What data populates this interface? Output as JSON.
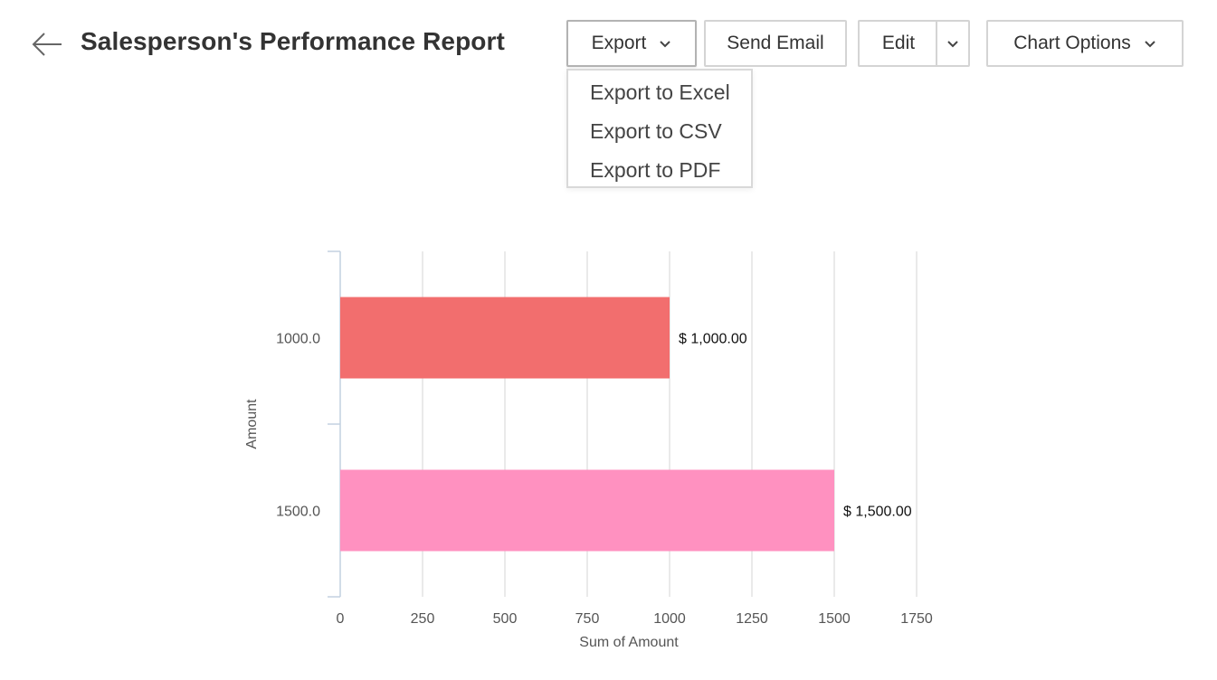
{
  "header": {
    "title": "Salesperson's Performance Report"
  },
  "toolbar": {
    "export_label": "Export",
    "send_email_label": "Send Email",
    "edit_label": "Edit",
    "chart_options_label": "Chart Options"
  },
  "export_menu": {
    "items": [
      "Export to Excel",
      "Export to CSV",
      "Export to PDF"
    ]
  },
  "colors": {
    "bar1": "#f26e6e",
    "bar2": "#ff91c0",
    "grid": "#d6d6d6",
    "axis": "#c2d1e0"
  },
  "chart_data": {
    "type": "bar",
    "orientation": "horizontal",
    "categories": [
      "1000.0",
      "1500.0"
    ],
    "values": [
      1000,
      1500
    ],
    "data_labels": [
      "$ 1,000.00",
      "$ 1,500.00"
    ],
    "xlabel": "Sum of Amount",
    "ylabel": "Amount",
    "xlim": [
      0,
      1750
    ],
    "xticks": [
      0,
      250,
      500,
      750,
      1000,
      1250,
      1500,
      1750
    ],
    "xtick_labels": [
      "0",
      "250",
      "500",
      "750",
      "1000",
      "1250",
      "1500",
      "1750"
    ],
    "grid": true
  }
}
